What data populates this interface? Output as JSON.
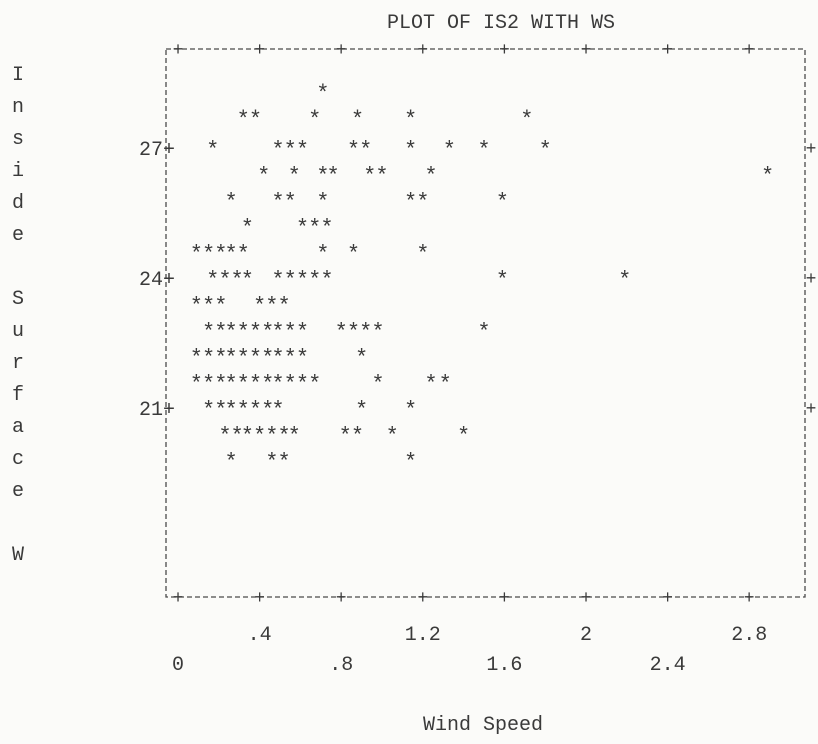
{
  "chart_data": {
    "type": "scatter",
    "title": "PLOT OF IS2 WITH WS",
    "xlabel": "Wind Speed",
    "ylabel": "Inside Surface W",
    "xlim": [
      0,
      3.1
    ],
    "ylim": [
      19.5,
      28.6
    ],
    "x_ticks_upper": [
      ".4",
      "1.2",
      "2",
      "2.8"
    ],
    "x_ticks_upper_values": [
      0.4,
      1.2,
      2.0,
      2.8
    ],
    "x_ticks_lower": [
      "0",
      ".8",
      "1.6",
      "2.4"
    ],
    "x_ticks_lower_values": [
      0.0,
      0.8,
      1.6,
      2.4
    ],
    "y_ticks": [
      "27",
      "24",
      "21"
    ],
    "y_tick_values": [
      27,
      24,
      21
    ],
    "marker": "*",
    "grid": false,
    "points": [
      [
        0.71,
        28.3
      ],
      [
        0.32,
        27.7
      ],
      [
        0.38,
        27.7
      ],
      [
        0.67,
        27.7
      ],
      [
        0.88,
        27.7
      ],
      [
        1.14,
        27.7
      ],
      [
        1.71,
        27.7
      ],
      [
        0.17,
        27.0
      ],
      [
        0.49,
        27.0
      ],
      [
        0.55,
        27.0
      ],
      [
        0.61,
        27.0
      ],
      [
        0.86,
        27.0
      ],
      [
        0.92,
        27.0
      ],
      [
        1.14,
        27.0
      ],
      [
        1.33,
        27.0
      ],
      [
        1.5,
        27.0
      ],
      [
        1.8,
        27.0
      ],
      [
        0.42,
        26.4
      ],
      [
        0.57,
        26.4
      ],
      [
        0.71,
        26.4
      ],
      [
        0.76,
        26.4
      ],
      [
        0.94,
        26.4
      ],
      [
        1.0,
        26.4
      ],
      [
        1.24,
        26.4
      ],
      [
        2.89,
        26.4
      ],
      [
        0.26,
        25.8
      ],
      [
        0.49,
        25.8
      ],
      [
        0.55,
        25.8
      ],
      [
        0.71,
        25.8
      ],
      [
        1.14,
        25.8
      ],
      [
        1.2,
        25.8
      ],
      [
        1.59,
        25.8
      ],
      [
        0.34,
        25.2
      ],
      [
        0.61,
        25.2
      ],
      [
        0.67,
        25.2
      ],
      [
        0.73,
        25.2
      ],
      [
        0.09,
        24.6
      ],
      [
        0.15,
        24.6
      ],
      [
        0.21,
        24.6
      ],
      [
        0.26,
        24.6
      ],
      [
        0.32,
        24.6
      ],
      [
        0.71,
        24.6
      ],
      [
        0.86,
        24.6
      ],
      [
        1.2,
        24.6
      ],
      [
        0.17,
        24.0
      ],
      [
        0.23,
        24.0
      ],
      [
        0.29,
        24.0
      ],
      [
        0.34,
        24.0
      ],
      [
        0.49,
        24.0
      ],
      [
        0.55,
        24.0
      ],
      [
        0.61,
        24.0
      ],
      [
        0.67,
        24.0
      ],
      [
        0.73,
        24.0
      ],
      [
        1.59,
        24.0
      ],
      [
        2.19,
        24.0
      ],
      [
        0.09,
        23.4
      ],
      [
        0.15,
        23.4
      ],
      [
        0.21,
        23.4
      ],
      [
        0.4,
        23.4
      ],
      [
        0.46,
        23.4
      ],
      [
        0.52,
        23.4
      ],
      [
        0.15,
        22.8
      ],
      [
        0.21,
        22.8
      ],
      [
        0.26,
        22.8
      ],
      [
        0.32,
        22.8
      ],
      [
        0.38,
        22.8
      ],
      [
        0.44,
        22.8
      ],
      [
        0.49,
        22.8
      ],
      [
        0.55,
        22.8
      ],
      [
        0.61,
        22.8
      ],
      [
        0.8,
        22.8
      ],
      [
        0.86,
        22.8
      ],
      [
        0.92,
        22.8
      ],
      [
        0.98,
        22.8
      ],
      [
        1.5,
        22.8
      ],
      [
        0.09,
        22.2
      ],
      [
        0.15,
        22.2
      ],
      [
        0.21,
        22.2
      ],
      [
        0.26,
        22.2
      ],
      [
        0.32,
        22.2
      ],
      [
        0.38,
        22.2
      ],
      [
        0.44,
        22.2
      ],
      [
        0.49,
        22.2
      ],
      [
        0.55,
        22.2
      ],
      [
        0.61,
        22.2
      ],
      [
        0.9,
        22.2
      ],
      [
        0.09,
        21.6
      ],
      [
        0.15,
        21.6
      ],
      [
        0.21,
        21.6
      ],
      [
        0.26,
        21.6
      ],
      [
        0.32,
        21.6
      ],
      [
        0.38,
        21.6
      ],
      [
        0.44,
        21.6
      ],
      [
        0.49,
        21.6
      ],
      [
        0.55,
        21.6
      ],
      [
        0.61,
        21.6
      ],
      [
        0.67,
        21.6
      ],
      [
        0.98,
        21.6
      ],
      [
        1.24,
        21.6
      ],
      [
        1.31,
        21.6
      ],
      [
        0.15,
        21.0
      ],
      [
        0.21,
        21.0
      ],
      [
        0.26,
        21.0
      ],
      [
        0.32,
        21.0
      ],
      [
        0.38,
        21.0
      ],
      [
        0.44,
        21.0
      ],
      [
        0.49,
        21.0
      ],
      [
        0.9,
        21.0
      ],
      [
        1.14,
        21.0
      ],
      [
        0.23,
        20.4
      ],
      [
        0.29,
        20.4
      ],
      [
        0.34,
        20.4
      ],
      [
        0.4,
        20.4
      ],
      [
        0.46,
        20.4
      ],
      [
        0.52,
        20.4
      ],
      [
        0.57,
        20.4
      ],
      [
        0.82,
        20.4
      ],
      [
        0.88,
        20.4
      ],
      [
        1.05,
        20.4
      ],
      [
        1.4,
        20.4
      ],
      [
        0.26,
        19.8
      ],
      [
        0.46,
        19.8
      ],
      [
        0.52,
        19.8
      ],
      [
        1.14,
        19.8
      ]
    ]
  }
}
